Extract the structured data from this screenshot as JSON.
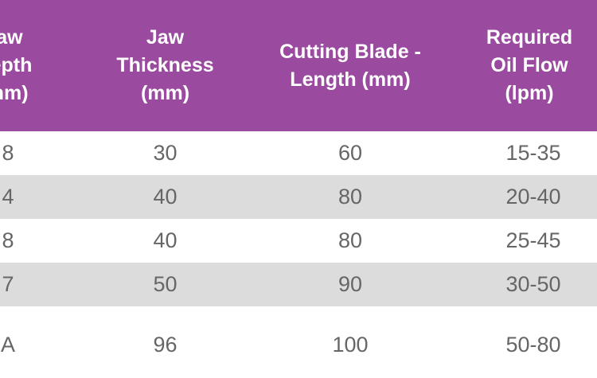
{
  "table": {
    "headers": [
      "Jaw\nDepth\n(mm)",
      "Jaw\nThickness\n(mm)",
      "Cutting Blade -\nLength (mm)",
      "Required\nOil Flow\n(lpm)"
    ],
    "rows": [
      [
        "8",
        "30",
        "60",
        "15-35"
      ],
      [
        "4",
        "40",
        "80",
        "20-40"
      ],
      [
        "8",
        "40",
        "80",
        "25-45"
      ],
      [
        "7",
        "50",
        "90",
        "30-50"
      ],
      [
        "A",
        "96",
        "100",
        "50-80"
      ]
    ]
  },
  "colors": {
    "header_bg": "#9a4a9f",
    "header_text": "#ffffff",
    "alt_row_bg": "#dcdcdd",
    "cell_text": "#666666"
  }
}
